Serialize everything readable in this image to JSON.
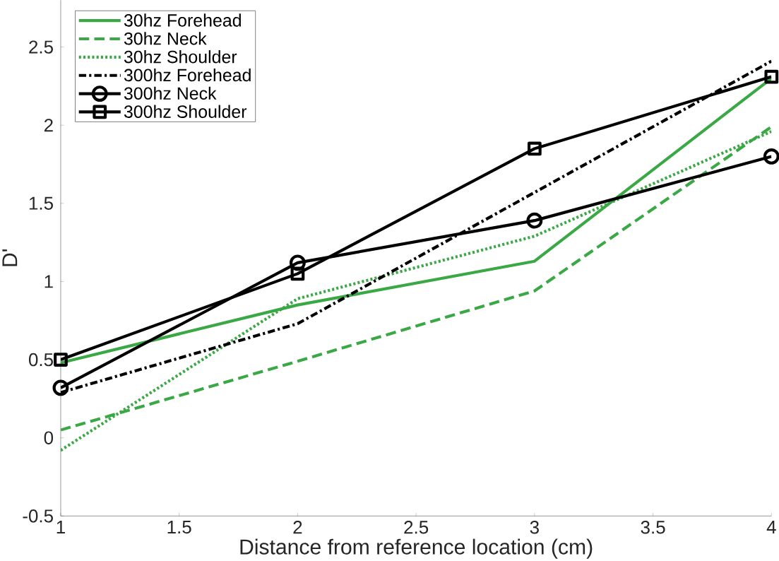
{
  "chart_data": {
    "type": "line",
    "xlabel": "Distance from reference location (cm)",
    "ylabel": "D'",
    "x": [
      1,
      2,
      3,
      4
    ],
    "xlim": [
      1,
      4
    ],
    "ylim": [
      -0.5,
      2.8
    ],
    "xticks": [
      1,
      1.5,
      2,
      2.5,
      3,
      3.5,
      4
    ],
    "yticks": [
      -0.5,
      0,
      0.5,
      1,
      1.5,
      2,
      2.5
    ],
    "grid": false,
    "legend": "top left",
    "series": [
      {
        "name": "30hz Forehead",
        "color": "#3aa845",
        "line_style": "solid",
        "marker": "none",
        "values": [
          0.48,
          0.85,
          1.13,
          2.3
        ]
      },
      {
        "name": "30hz Neck",
        "color": "#3aa845",
        "line_style": "dashed",
        "marker": "none",
        "values": [
          0.05,
          0.49,
          0.94,
          1.99
        ]
      },
      {
        "name": "30hz Shoulder",
        "color": "#3aa845",
        "line_style": "dotted",
        "marker": "none",
        "values": [
          -0.08,
          0.89,
          1.29,
          1.96
        ]
      },
      {
        "name": "300hz Forehead",
        "color": "#000000",
        "line_style": "dashdot",
        "marker": "none",
        "values": [
          0.29,
          0.73,
          1.57,
          2.41
        ]
      },
      {
        "name": "300hz Neck",
        "color": "#000000",
        "line_style": "solid",
        "marker": "circle",
        "values": [
          0.32,
          1.12,
          1.39,
          1.8
        ]
      },
      {
        "name": "300hz Shoulder",
        "color": "#000000",
        "line_style": "solid",
        "marker": "square",
        "values": [
          0.5,
          1.05,
          1.85,
          2.31
        ]
      }
    ]
  }
}
